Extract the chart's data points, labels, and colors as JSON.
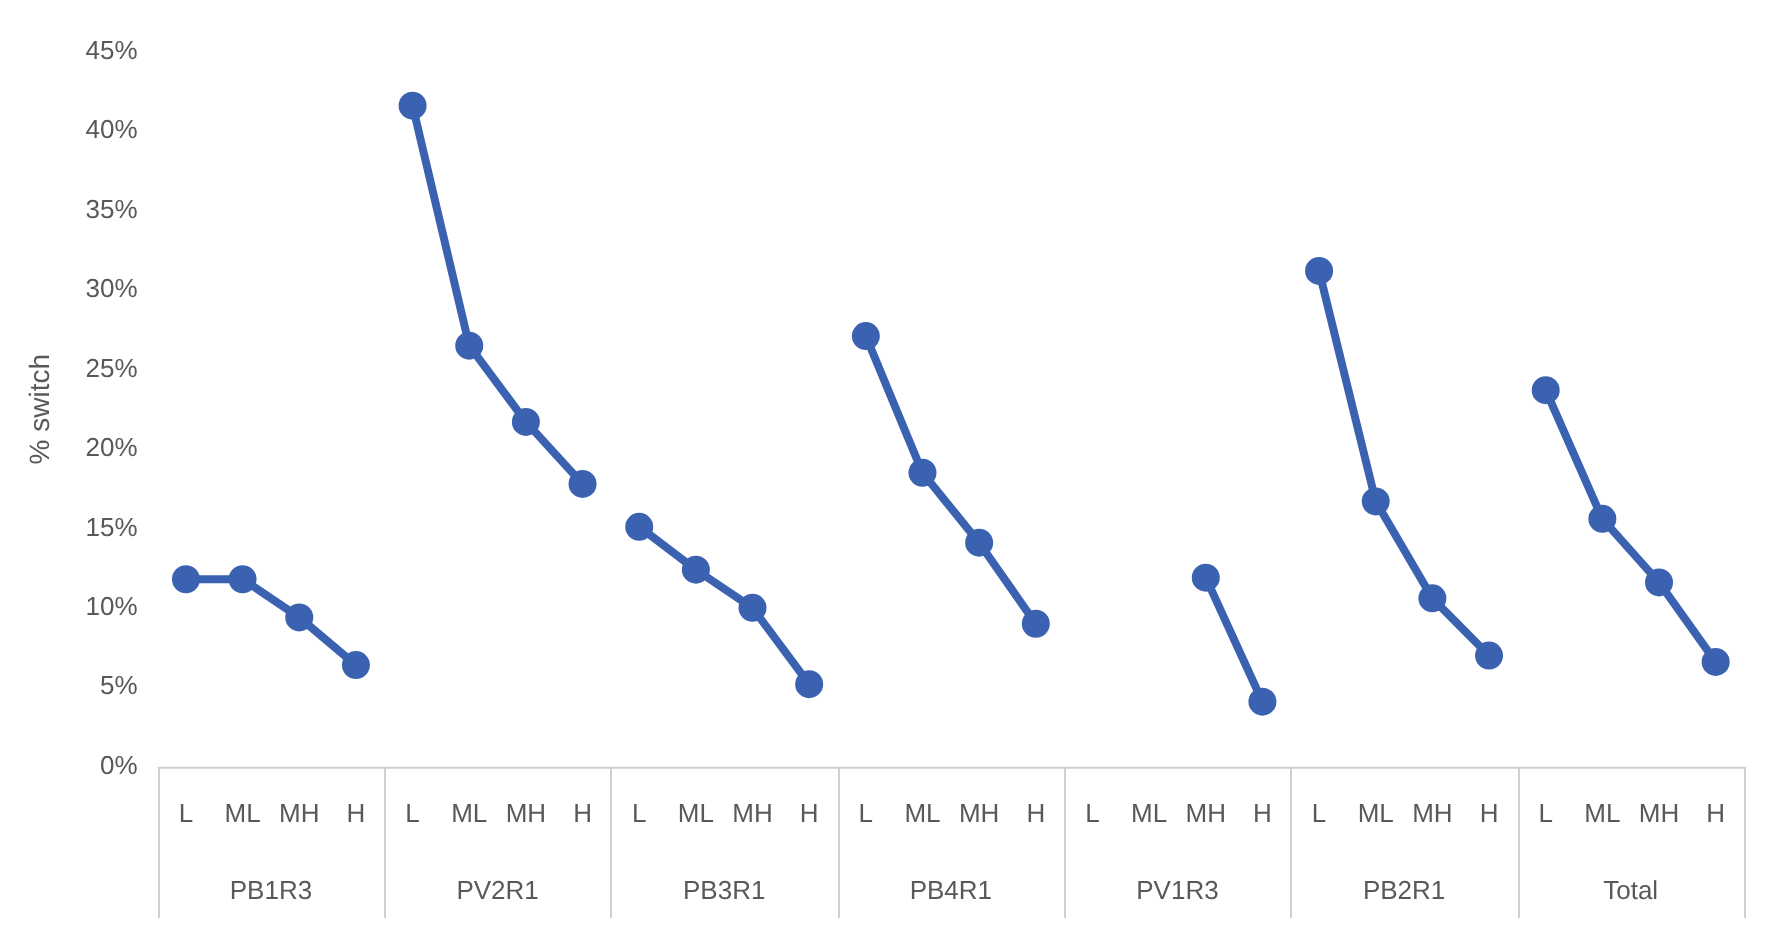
{
  "chart_data": {
    "type": "line",
    "ylabel": "% switch",
    "categories": [
      "L",
      "ML",
      "MH",
      "H",
      "L",
      "ML",
      "MH",
      "H",
      "L",
      "ML",
      "MH",
      "H",
      "L",
      "ML",
      "MH",
      "H",
      "L",
      "ML",
      "MH",
      "H",
      "L",
      "ML",
      "MH",
      "H",
      "L",
      "ML",
      "MH",
      "H"
    ],
    "series": [
      {
        "color": "#3a62b0",
        "values": [
          11.8,
          11.8,
          9.4,
          6.4,
          null,
          null,
          null,
          null,
          null,
          null,
          null,
          null,
          null,
          null,
          null,
          null,
          null,
          null,
          null,
          null,
          null,
          null,
          null,
          null,
          null,
          null,
          null,
          null
        ]
      },
      {
        "color": "#3a62b0",
        "values": [
          null,
          null,
          null,
          null,
          41.6,
          26.5,
          21.7,
          17.8,
          null,
          null,
          null,
          null,
          null,
          null,
          null,
          null,
          null,
          null,
          null,
          null,
          null,
          null,
          null,
          null,
          null,
          null,
          null,
          null
        ]
      },
      {
        "color": "#3a62b0",
        "values": [
          null,
          null,
          null,
          null,
          null,
          null,
          null,
          null,
          15.1,
          12.4,
          10.0,
          5.2,
          null,
          null,
          null,
          null,
          null,
          null,
          null,
          null,
          null,
          null,
          null,
          null,
          null,
          null,
          null,
          null
        ]
      },
      {
        "color": "#3a62b0",
        "values": [
          null,
          null,
          null,
          null,
          null,
          null,
          null,
          null,
          null,
          null,
          null,
          null,
          27.1,
          18.5,
          14.1,
          9.0,
          null,
          null,
          null,
          null,
          null,
          null,
          null,
          null,
          null,
          null,
          null,
          null
        ]
      },
      {
        "color": "#3a62b0",
        "values": [
          null,
          null,
          null,
          null,
          null,
          null,
          null,
          null,
          null,
          null,
          null,
          null,
          null,
          null,
          null,
          null,
          null,
          null,
          11.9,
          4.1,
          null,
          null,
          null,
          null,
          null,
          null,
          null,
          null
        ]
      },
      {
        "color": "#3a62b0",
        "values": [
          null,
          null,
          null,
          null,
          null,
          null,
          null,
          null,
          null,
          null,
          null,
          null,
          null,
          null,
          null,
          null,
          null,
          null,
          null,
          null,
          31.2,
          16.7,
          10.6,
          7.0,
          null,
          null,
          null,
          null
        ]
      },
      {
        "color": "#3a62b0",
        "values": [
          null,
          null,
          null,
          null,
          null,
          null,
          null,
          null,
          null,
          null,
          null,
          null,
          null,
          null,
          null,
          null,
          null,
          null,
          null,
          null,
          null,
          null,
          null,
          null,
          23.7,
          15.6,
          11.6,
          6.6
        ]
      }
    ],
    "annotations": [
      "PB1R3",
      "PV2R1",
      "PB3R1",
      "PB4R1",
      "PV1R3",
      "PB2R1",
      "Total"
    ],
    "ylim": [
      0,
      45
    ],
    "yticks": [
      {
        "value": 0,
        "label": "0%"
      },
      {
        "value": 5,
        "label": "5%"
      },
      {
        "value": 10,
        "label": "10%"
      },
      {
        "value": 15,
        "label": "15%"
      },
      {
        "value": 20,
        "label": "20%"
      },
      {
        "value": 25,
        "label": "25%"
      },
      {
        "value": 30,
        "label": "30%"
      },
      {
        "value": 35,
        "label": "35%"
      },
      {
        "value": 40,
        "label": "40%"
      },
      {
        "value": 45,
        "label": "45%"
      }
    ],
    "grid": false,
    "legend": false,
    "marker": "circle",
    "line_style": "solid"
  }
}
